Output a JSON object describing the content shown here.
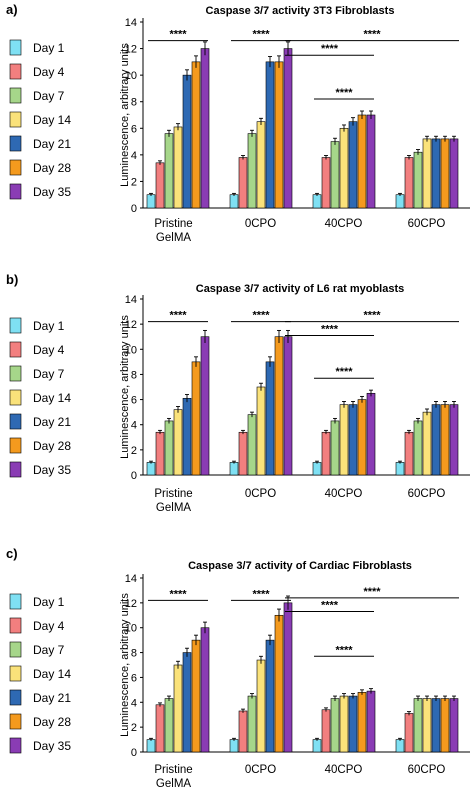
{
  "chart_data": [
    {
      "type": "bar",
      "panel_label": "a)",
      "title": "Caspase 3/7 activity 3T3 Fibroblasts",
      "ylabel": "Luminescence, arbitrary units",
      "ylim": [
        0,
        14
      ],
      "yticks": [
        "0",
        "2",
        "4",
        "6",
        "8",
        "10",
        "12",
        "14"
      ],
      "categories": [
        "Pristine GelMA",
        "0CPO",
        "40CPO",
        "60CPO"
      ],
      "series": [
        {
          "name": "Day 1",
          "values": [
            1.0,
            1.0,
            1.0,
            1.0
          ],
          "errors": [
            0.1,
            0.1,
            0.1,
            0.1
          ]
        },
        {
          "name": "Day 4",
          "values": [
            3.4,
            3.8,
            3.8,
            3.8
          ],
          "errors": [
            0.15,
            0.15,
            0.15,
            0.15
          ]
        },
        {
          "name": "Day 7",
          "values": [
            5.6,
            5.6,
            5.0,
            4.2
          ],
          "errors": [
            0.25,
            0.25,
            0.25,
            0.2
          ]
        },
        {
          "name": "Day 14",
          "values": [
            6.1,
            6.5,
            6.0,
            5.2
          ],
          "errors": [
            0.25,
            0.25,
            0.25,
            0.2
          ]
        },
        {
          "name": "Day 21",
          "values": [
            10.0,
            11.0,
            6.5,
            5.2
          ],
          "errors": [
            0.4,
            0.4,
            0.3,
            0.2
          ]
        },
        {
          "name": "Day 28",
          "values": [
            11.0,
            11.0,
            7.0,
            5.2
          ],
          "errors": [
            0.45,
            0.45,
            0.3,
            0.2
          ]
        },
        {
          "name": "Day 35",
          "values": [
            12.0,
            12.0,
            7.0,
            5.2
          ],
          "errors": [
            0.5,
            0.5,
            0.3,
            0.2
          ]
        }
      ],
      "significance": [
        {
          "label": "****",
          "from": [
            0,
            0
          ],
          "to": [
            0,
            6
          ],
          "y": 12.6
        },
        {
          "label": "****",
          "from": [
            1,
            0
          ],
          "to": [
            1,
            6
          ],
          "y": 12.6
        },
        {
          "label": "****",
          "from": [
            1,
            6
          ],
          "to": [
            3,
            6
          ],
          "y": 12.6
        },
        {
          "label": "****",
          "from": [
            1,
            6
          ],
          "to": [
            2,
            6
          ],
          "y": 11.5
        },
        {
          "label": "****",
          "from": [
            2,
            0
          ],
          "to": [
            2,
            6
          ],
          "y": 8.2
        }
      ]
    },
    {
      "type": "bar",
      "panel_label": "b)",
      "title": "Caspase 3/7 activity of L6 rat myoblasts",
      "ylabel": "Luminescence, arbitrary units",
      "ylim": [
        0,
        14
      ],
      "yticks": [
        "0",
        "2",
        "4",
        "6",
        "8",
        "10",
        "12",
        "14"
      ],
      "categories": [
        "Pristine GelMA",
        "0CPO",
        "40CPO",
        "60CPO"
      ],
      "series": [
        {
          "name": "Day 1",
          "values": [
            1.0,
            1.0,
            1.0,
            1.0
          ],
          "errors": [
            0.1,
            0.1,
            0.1,
            0.1
          ]
        },
        {
          "name": "Day 4",
          "values": [
            3.4,
            3.4,
            3.4,
            3.4
          ],
          "errors": [
            0.15,
            0.15,
            0.15,
            0.15
          ]
        },
        {
          "name": "Day 7",
          "values": [
            4.3,
            4.8,
            4.3,
            4.3
          ],
          "errors": [
            0.2,
            0.2,
            0.2,
            0.2
          ]
        },
        {
          "name": "Day 14",
          "values": [
            5.2,
            7.0,
            5.6,
            5.0
          ],
          "errors": [
            0.25,
            0.3,
            0.25,
            0.25
          ]
        },
        {
          "name": "Day 21",
          "values": [
            6.1,
            9.0,
            5.6,
            5.6
          ],
          "errors": [
            0.3,
            0.4,
            0.25,
            0.25
          ]
        },
        {
          "name": "Day 28",
          "values": [
            9.0,
            11.0,
            6.0,
            5.6
          ],
          "errors": [
            0.4,
            0.5,
            0.25,
            0.25
          ]
        },
        {
          "name": "Day 35",
          "values": [
            11.0,
            11.0,
            6.5,
            5.6
          ],
          "errors": [
            0.5,
            0.5,
            0.25,
            0.25
          ]
        }
      ],
      "significance": [
        {
          "label": "****",
          "from": [
            0,
            0
          ],
          "to": [
            0,
            6
          ],
          "y": 12.2
        },
        {
          "label": "****",
          "from": [
            1,
            0
          ],
          "to": [
            1,
            6
          ],
          "y": 12.2
        },
        {
          "label": "****",
          "from": [
            1,
            6
          ],
          "to": [
            3,
            6
          ],
          "y": 12.2
        },
        {
          "label": "****",
          "from": [
            1,
            6
          ],
          "to": [
            2,
            6
          ],
          "y": 11.1
        },
        {
          "label": "****",
          "from": [
            2,
            0
          ],
          "to": [
            2,
            6
          ],
          "y": 7.7
        }
      ]
    },
    {
      "type": "bar",
      "panel_label": "c)",
      "title": "Caspase 3/7 activity of Cardiac Fibroblasts",
      "ylabel": "Luminescence, arbitrary units",
      "ylim": [
        0,
        14
      ],
      "yticks": [
        "0",
        "2",
        "4",
        "6",
        "8",
        "10",
        "12",
        "14"
      ],
      "categories": [
        "Pristine GelMA",
        "0CPO",
        "40CPO",
        "60CPO"
      ],
      "series": [
        {
          "name": "Day 1",
          "values": [
            1.0,
            1.0,
            1.0,
            1.0
          ],
          "errors": [
            0.1,
            0.1,
            0.1,
            0.1
          ]
        },
        {
          "name": "Day 4",
          "values": [
            3.8,
            3.3,
            3.4,
            3.1
          ],
          "errors": [
            0.15,
            0.15,
            0.15,
            0.15
          ]
        },
        {
          "name": "Day 7",
          "values": [
            4.3,
            4.5,
            4.3,
            4.3
          ],
          "errors": [
            0.2,
            0.2,
            0.2,
            0.2
          ]
        },
        {
          "name": "Day 14",
          "values": [
            7.0,
            7.4,
            4.5,
            4.3
          ],
          "errors": [
            0.3,
            0.3,
            0.2,
            0.2
          ]
        },
        {
          "name": "Day 21",
          "values": [
            8.0,
            9.0,
            4.5,
            4.3
          ],
          "errors": [
            0.35,
            0.4,
            0.2,
            0.2
          ]
        },
        {
          "name": "Day 28",
          "values": [
            9.0,
            11.0,
            4.8,
            4.3
          ],
          "errors": [
            0.4,
            0.5,
            0.2,
            0.2
          ]
        },
        {
          "name": "Day 35",
          "values": [
            10.0,
            12.0,
            4.9,
            4.3
          ],
          "errors": [
            0.45,
            0.55,
            0.2,
            0.2
          ]
        }
      ],
      "significance": [
        {
          "label": "****",
          "from": [
            0,
            0
          ],
          "to": [
            0,
            6
          ],
          "y": 12.2
        },
        {
          "label": "****",
          "from": [
            1,
            0
          ],
          "to": [
            1,
            6
          ],
          "y": 12.2
        },
        {
          "label": "****",
          "from": [
            1,
            6
          ],
          "to": [
            3,
            6
          ],
          "y": 12.4
        },
        {
          "label": "****",
          "from": [
            1,
            6
          ],
          "to": [
            2,
            6
          ],
          "y": 11.3
        },
        {
          "label": "****",
          "from": [
            2,
            0
          ],
          "to": [
            2,
            6
          ],
          "y": 7.7
        }
      ]
    }
  ],
  "legend_colors": [
    "#7fe0f3",
    "#f27f7f",
    "#a6d68a",
    "#fae27a",
    "#2e69b3",
    "#f49a1e",
    "#8a3cb4"
  ],
  "edge_color": "#000000"
}
